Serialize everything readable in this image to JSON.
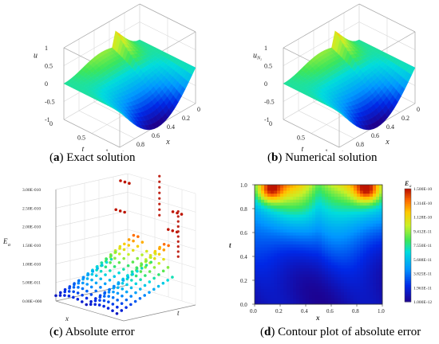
{
  "panels": [
    {
      "id": "a",
      "letter": "a",
      "caption": "Exact solution",
      "z_label": "u",
      "z_ticks": [
        "1",
        "0.5",
        "0",
        "-0.5",
        "-1"
      ],
      "t_ticks": [
        "0",
        "0.5",
        "1"
      ],
      "x_ticks": [
        "1",
        "0.8",
        "0.6",
        "0.4",
        "0.2",
        "0"
      ],
      "t_label": "t",
      "x_label": "x"
    },
    {
      "id": "b",
      "letter": "b",
      "caption": "Numerical solution",
      "z_label": "u_{N_2}",
      "z_ticks": [
        "1",
        "0.5",
        "0",
        "-0.5",
        "-1"
      ],
      "t_ticks": [
        "0",
        "0.5",
        "1"
      ],
      "x_ticks": [
        "1",
        "0.8",
        "0.6",
        "0.4",
        "0.2",
        "0"
      ],
      "t_label": "t",
      "x_label": "x"
    },
    {
      "id": "c",
      "letter": "c",
      "caption": "Absolute error",
      "z_label": "E_a",
      "z_ticks": [
        "3.00E-010",
        "2.50E-010",
        "2.00E-010",
        "1.50E-010",
        "1.00E-010",
        "5.00E-011",
        "0.00E+000"
      ],
      "x_label": "x",
      "t_label": "t"
    },
    {
      "id": "d",
      "letter": "d",
      "caption": "Contour plot of absolute error",
      "x_label": "x",
      "t_label": "t",
      "x_ticks": [
        "0.0",
        "0.2",
        "0.4",
        "0.6",
        "0.8",
        "1.0"
      ],
      "t_ticks": [
        "0.0",
        "0.2",
        "0.4",
        "0.6",
        "0.8",
        "1.0"
      ],
      "colorbar_title": "E_a",
      "colorbar_ticks": [
        "1.500E-10",
        "1.314E-10",
        "1.128E-10",
        "9.412E-11",
        "7.550E-11",
        "5.688E-11",
        "3.825E-11",
        "1.963E-11",
        "1.000E-12"
      ]
    }
  ],
  "colors": {
    "low": "#1a0080",
    "mid": "#33cc33",
    "high": "#cc2200",
    "axis": "#444444"
  },
  "chart_data": [
    {
      "type": "surface",
      "panel": "a",
      "title": "Exact solution",
      "xlabel": "x",
      "ylabel": "t",
      "zlabel": "u",
      "xlim": [
        0,
        1
      ],
      "ylim": [
        0,
        1
      ],
      "zlim": [
        -1,
        1
      ],
      "grid": true
    },
    {
      "type": "surface",
      "panel": "b",
      "title": "Numerical solution",
      "xlabel": "x",
      "ylabel": "t",
      "zlabel": "u_{N_2}",
      "xlim": [
        0,
        1
      ],
      "ylim": [
        0,
        1
      ],
      "zlim": [
        -1,
        1
      ],
      "grid": true
    },
    {
      "type": "scatter",
      "panel": "c",
      "title": "Absolute error",
      "xlabel": "x",
      "ylabel": "t",
      "zlabel": "E_a",
      "zlim": [
        0,
        3e-10
      ],
      "grid": true
    },
    {
      "type": "heatmap",
      "panel": "d",
      "title": "Contour plot of absolute error",
      "xlabel": "x",
      "ylabel": "t",
      "xlim": [
        0,
        1
      ],
      "ylim": [
        0,
        1
      ],
      "colorbar_range": [
        1e-12,
        1.5e-10
      ],
      "grid": false
    }
  ]
}
